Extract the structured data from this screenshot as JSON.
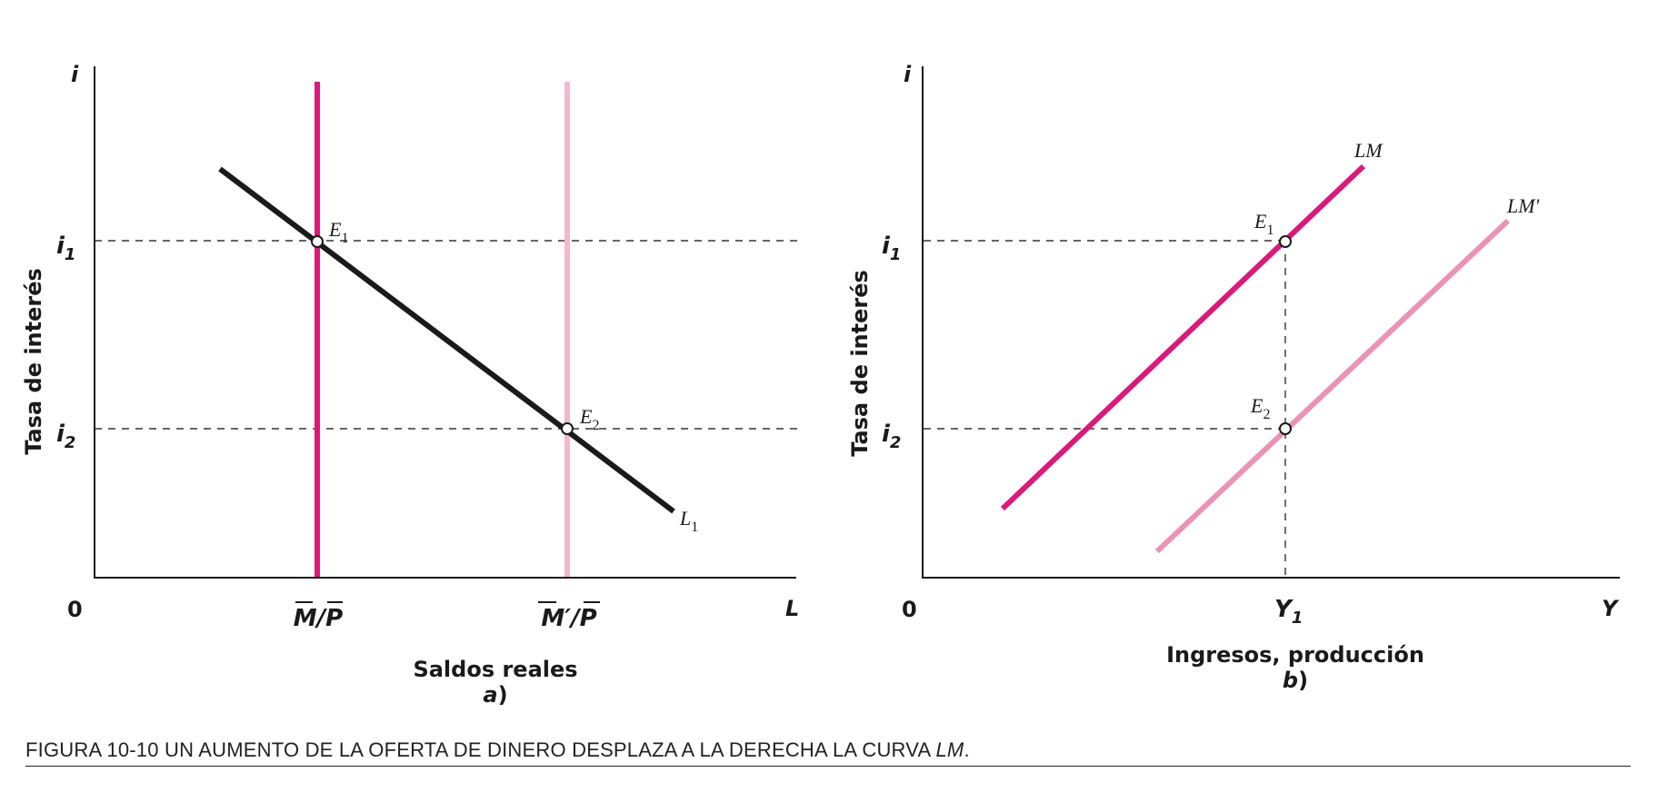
{
  "caption": {
    "prefix": "FIGURA 10-10   UN AUMENTO DE LA OFERTA DE DINERO DESPLAZA A LA DERECHA LA CURVA ",
    "italic": "LM",
    "suffix": "."
  },
  "chart_data": [
    {
      "type": "line",
      "panel": "a",
      "panel_tag": "a",
      "ylabel": "Tasa de interés",
      "xlabel": "Saldos reales",
      "axis_x_symbol": "L",
      "axis_y_symbol": "i",
      "origin_label": "0",
      "yticks": [
        {
          "label": "i",
          "sub": "1",
          "value": 1
        },
        {
          "label": "i",
          "sub": "2",
          "value": 2
        }
      ],
      "xticks": [
        {
          "label": "M/P",
          "value": 1
        },
        {
          "label": "M′/P",
          "value": 2
        }
      ],
      "series": [
        {
          "name": "L",
          "sub": "1",
          "color": "#1a1a1a"
        },
        {
          "name": "M/P",
          "color": "#d81b7a"
        },
        {
          "name": "M′/P",
          "color": "#f2b8cc"
        }
      ],
      "points": [
        {
          "name": "E",
          "sub": "1"
        },
        {
          "name": "E",
          "sub": "2"
        }
      ],
      "grid": false
    },
    {
      "type": "line",
      "panel": "b",
      "panel_tag": "b",
      "ylabel": "Tasa de interés",
      "xlabel": "Ingresos, producción",
      "axis_x_symbol": "Y",
      "axis_y_symbol": "i",
      "origin_label": "0",
      "yticks": [
        {
          "label": "i",
          "sub": "1",
          "value": 1
        },
        {
          "label": "i",
          "sub": "2",
          "value": 2
        }
      ],
      "xticks": [
        {
          "label": "Y",
          "sub": "1",
          "value": 1
        }
      ],
      "series": [
        {
          "name": "LM",
          "color": "#d81b7a"
        },
        {
          "name": "LM'",
          "color": "#ea93b4"
        }
      ],
      "points": [
        {
          "name": "E",
          "sub": "1"
        },
        {
          "name": "E",
          "sub": "2"
        }
      ],
      "grid": false
    }
  ]
}
